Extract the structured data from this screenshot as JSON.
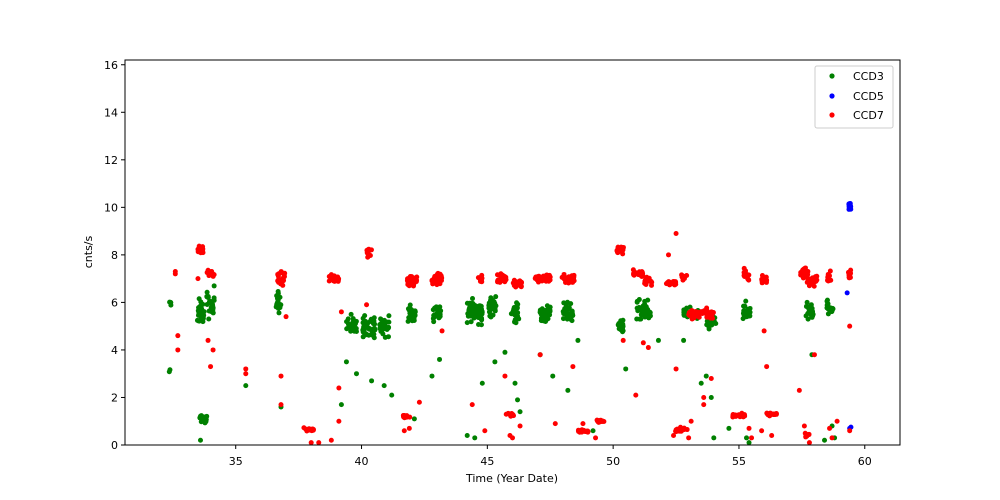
{
  "chart_data": {
    "type": "scatter",
    "xlabel": "Time (Year Date)",
    "ylabel": "cnts/s",
    "xlim": [
      30.6,
      61.4
    ],
    "ylim": [
      0,
      16.2
    ],
    "xticks": [
      35,
      40,
      45,
      50,
      55,
      60
    ],
    "yticks": [
      0,
      2,
      4,
      6,
      8,
      10,
      12,
      14,
      16
    ],
    "grid": false,
    "legend": "top-right",
    "series": [
      {
        "name": "CCD3",
        "color": "#008000",
        "clusters": [
          {
            "x": 32.4,
            "dx": 0.05,
            "y": 5.9,
            "dy": 0.3,
            "n": 4
          },
          {
            "x": 32.4,
            "dx": 0.05,
            "y": 3.1,
            "dy": 0.2,
            "n": 2
          },
          {
            "x": 33.6,
            "dx": 0.15,
            "y": 5.6,
            "dy": 0.8,
            "n": 30
          },
          {
            "x": 33.7,
            "dx": 0.15,
            "y": 1.1,
            "dy": 0.25,
            "n": 22
          },
          {
            "x": 34.0,
            "dx": 0.15,
            "y": 6.0,
            "dy": 1.0,
            "n": 28
          },
          {
            "x": 36.7,
            "dx": 0.1,
            "y": 6.0,
            "dy": 0.7,
            "n": 18
          },
          {
            "x": 39.6,
            "dx": 0.2,
            "y": 5.0,
            "dy": 0.7,
            "n": 28
          },
          {
            "x": 40.3,
            "dx": 0.25,
            "y": 5.0,
            "dy": 0.7,
            "n": 40
          },
          {
            "x": 40.9,
            "dx": 0.2,
            "y": 5.0,
            "dy": 0.7,
            "n": 30
          },
          {
            "x": 42.0,
            "dx": 0.15,
            "y": 5.5,
            "dy": 0.6,
            "n": 28
          },
          {
            "x": 43.0,
            "dx": 0.15,
            "y": 5.6,
            "dy": 0.6,
            "n": 28
          },
          {
            "x": 44.5,
            "dx": 0.3,
            "y": 5.6,
            "dy": 0.7,
            "n": 80
          },
          {
            "x": 45.2,
            "dx": 0.15,
            "y": 5.8,
            "dy": 0.8,
            "n": 26
          },
          {
            "x": 46.1,
            "dx": 0.15,
            "y": 5.6,
            "dy": 0.7,
            "n": 30
          },
          {
            "x": 47.3,
            "dx": 0.2,
            "y": 5.5,
            "dy": 0.6,
            "n": 36
          },
          {
            "x": 48.2,
            "dx": 0.2,
            "y": 5.6,
            "dy": 0.6,
            "n": 30
          },
          {
            "x": 50.3,
            "dx": 0.1,
            "y": 5.0,
            "dy": 0.6,
            "n": 22
          },
          {
            "x": 51.2,
            "dx": 0.3,
            "y": 5.6,
            "dy": 0.7,
            "n": 40
          },
          {
            "x": 53.1,
            "dx": 0.3,
            "y": 5.5,
            "dy": 0.4,
            "n": 30
          },
          {
            "x": 53.9,
            "dx": 0.2,
            "y": 5.2,
            "dy": 0.5,
            "n": 20
          },
          {
            "x": 55.3,
            "dx": 0.15,
            "y": 5.6,
            "dy": 0.6,
            "n": 24
          },
          {
            "x": 57.8,
            "dx": 0.15,
            "y": 5.7,
            "dy": 0.7,
            "n": 24
          },
          {
            "x": 58.6,
            "dx": 0.15,
            "y": 5.8,
            "dy": 0.5,
            "n": 16
          }
        ],
        "points": [
          [
            33.6,
            0.2
          ],
          [
            35.4,
            2.5
          ],
          [
            36.8,
            1.6
          ],
          [
            39.2,
            1.7
          ],
          [
            39.4,
            3.5
          ],
          [
            39.8,
            3.0
          ],
          [
            40.4,
            2.7
          ],
          [
            40.9,
            2.5
          ],
          [
            41.2,
            2.1
          ],
          [
            42.1,
            1.1
          ],
          [
            42.8,
            2.9
          ],
          [
            43.1,
            3.6
          ],
          [
            44.2,
            0.4
          ],
          [
            44.5,
            0.3
          ],
          [
            44.8,
            2.6
          ],
          [
            45.3,
            3.5
          ],
          [
            45.7,
            3.9
          ],
          [
            46.1,
            2.6
          ],
          [
            46.2,
            1.9
          ],
          [
            46.3,
            1.4
          ],
          [
            47.1,
            3.8
          ],
          [
            47.6,
            2.9
          ],
          [
            48.2,
            2.3
          ],
          [
            48.6,
            4.4
          ],
          [
            49.2,
            0.6
          ],
          [
            50.5,
            3.2
          ],
          [
            51.8,
            4.4
          ],
          [
            52.8,
            4.4
          ],
          [
            53.7,
            2.9
          ],
          [
            53.5,
            2.6
          ],
          [
            54.0,
            0.3
          ],
          [
            54.6,
            0.7
          ],
          [
            55.3,
            0.3
          ],
          [
            55.4,
            0.1
          ],
          [
            57.9,
            3.8
          ],
          [
            58.4,
            0.2
          ],
          [
            58.7,
            0.8
          ],
          [
            58.8,
            0.3
          ],
          [
            53.9,
            2.0
          ]
        ]
      },
      {
        "name": "CCD5",
        "color": "#0000ff",
        "clusters": [
          {
            "x": 59.4,
            "dx": 0.05,
            "y": 10.05,
            "dy": 0.25,
            "n": 14
          }
        ],
        "points": [
          [
            59.3,
            6.4
          ],
          [
            59.4,
            0.7
          ],
          [
            59.45,
            0.75
          ]
        ]
      },
      {
        "name": "CCD7",
        "color": "#ff0000",
        "clusters": [
          {
            "x": 33.6,
            "dx": 0.1,
            "y": 8.2,
            "dy": 0.25,
            "n": 18
          },
          {
            "x": 34.0,
            "dx": 0.15,
            "y": 7.2,
            "dy": 0.25,
            "n": 16
          },
          {
            "x": 36.8,
            "dx": 0.15,
            "y": 7.0,
            "dy": 0.4,
            "n": 22
          },
          {
            "x": 37.9,
            "dx": 0.2,
            "y": 0.65,
            "dy": 0.1,
            "n": 16
          },
          {
            "x": 38.9,
            "dx": 0.2,
            "y": 7.0,
            "dy": 0.25,
            "n": 22
          },
          {
            "x": 40.3,
            "dx": 0.1,
            "y": 8.1,
            "dy": 0.35,
            "n": 10
          },
          {
            "x": 41.8,
            "dx": 0.15,
            "y": 1.2,
            "dy": 0.1,
            "n": 14
          },
          {
            "x": 42.0,
            "dx": 0.2,
            "y": 6.9,
            "dy": 0.35,
            "n": 30
          },
          {
            "x": 43.0,
            "dx": 0.2,
            "y": 7.0,
            "dy": 0.35,
            "n": 30
          },
          {
            "x": 44.7,
            "dx": 0.1,
            "y": 7.0,
            "dy": 0.3,
            "n": 10
          },
          {
            "x": 45.6,
            "dx": 0.2,
            "y": 7.0,
            "dy": 0.3,
            "n": 28
          },
          {
            "x": 45.9,
            "dx": 0.15,
            "y": 1.3,
            "dy": 0.15,
            "n": 12
          },
          {
            "x": 46.2,
            "dx": 0.2,
            "y": 6.8,
            "dy": 0.3,
            "n": 24
          },
          {
            "x": 47.2,
            "dx": 0.3,
            "y": 7.0,
            "dy": 0.3,
            "n": 44
          },
          {
            "x": 48.2,
            "dx": 0.25,
            "y": 7.0,
            "dy": 0.3,
            "n": 36
          },
          {
            "x": 48.8,
            "dx": 0.2,
            "y": 0.6,
            "dy": 0.15,
            "n": 16
          },
          {
            "x": 49.5,
            "dx": 0.15,
            "y": 1.0,
            "dy": 0.1,
            "n": 14
          },
          {
            "x": 50.3,
            "dx": 0.15,
            "y": 8.2,
            "dy": 0.25,
            "n": 22
          },
          {
            "x": 51.0,
            "dx": 0.2,
            "y": 7.2,
            "dy": 0.25,
            "n": 22
          },
          {
            "x": 51.4,
            "dx": 0.15,
            "y": 6.9,
            "dy": 0.3,
            "n": 14
          },
          {
            "x": 52.3,
            "dx": 0.2,
            "y": 6.8,
            "dy": 0.2,
            "n": 22
          },
          {
            "x": 52.8,
            "dx": 0.12,
            "y": 7.1,
            "dy": 0.3,
            "n": 10
          },
          {
            "x": 52.7,
            "dx": 0.25,
            "y": 0.65,
            "dy": 0.15,
            "n": 18
          },
          {
            "x": 53.3,
            "dx": 0.3,
            "y": 5.5,
            "dy": 0.25,
            "n": 44
          },
          {
            "x": 53.8,
            "dx": 0.2,
            "y": 5.5,
            "dy": 0.3,
            "n": 20
          },
          {
            "x": 55.0,
            "dx": 0.25,
            "y": 1.25,
            "dy": 0.1,
            "n": 24
          },
          {
            "x": 55.3,
            "dx": 0.1,
            "y": 7.2,
            "dy": 0.5,
            "n": 14
          },
          {
            "x": 56.0,
            "dx": 0.1,
            "y": 6.9,
            "dy": 0.3,
            "n": 12
          },
          {
            "x": 56.3,
            "dx": 0.2,
            "y": 1.3,
            "dy": 0.1,
            "n": 24
          },
          {
            "x": 57.6,
            "dx": 0.15,
            "y": 7.2,
            "dy": 0.4,
            "n": 20
          },
          {
            "x": 57.9,
            "dx": 0.2,
            "y": 6.9,
            "dy": 0.4,
            "n": 24
          },
          {
            "x": 57.7,
            "dx": 0.1,
            "y": 0.45,
            "dy": 0.15,
            "n": 8
          },
          {
            "x": 58.6,
            "dx": 0.1,
            "y": 7.1,
            "dy": 0.3,
            "n": 12
          },
          {
            "x": 59.4,
            "dx": 0.05,
            "y": 7.2,
            "dy": 0.3,
            "n": 10
          }
        ],
        "points": [
          [
            32.6,
            7.2
          ],
          [
            32.6,
            7.3
          ],
          [
            32.7,
            4.6
          ],
          [
            32.7,
            4.0
          ],
          [
            33.5,
            7.0
          ],
          [
            33.9,
            4.4
          ],
          [
            34.1,
            4.0
          ],
          [
            34.0,
            3.3
          ],
          [
            35.4,
            3.0
          ],
          [
            35.4,
            3.2
          ],
          [
            36.8,
            2.9
          ],
          [
            36.8,
            1.7
          ],
          [
            37.0,
            5.4
          ],
          [
            38.0,
            0.1
          ],
          [
            38.3,
            0.1
          ],
          [
            38.8,
            0.2
          ],
          [
            39.1,
            1.0
          ],
          [
            39.1,
            2.4
          ],
          [
            39.2,
            5.6
          ],
          [
            40.2,
            5.9
          ],
          [
            41.7,
            0.6
          ],
          [
            41.9,
            0.7
          ],
          [
            42.3,
            1.8
          ],
          [
            43.2,
            4.8
          ],
          [
            44.4,
            1.7
          ],
          [
            44.9,
            0.6
          ],
          [
            45.7,
            2.9
          ],
          [
            45.9,
            0.4
          ],
          [
            46.0,
            0.3
          ],
          [
            46.3,
            0.8
          ],
          [
            47.1,
            3.8
          ],
          [
            47.7,
            0.9
          ],
          [
            48.4,
            3.3
          ],
          [
            48.8,
            0.9
          ],
          [
            49.3,
            0.3
          ],
          [
            50.4,
            4.4
          ],
          [
            50.9,
            2.1
          ],
          [
            51.2,
            4.3
          ],
          [
            51.4,
            4.1
          ],
          [
            52.4,
            0.4
          ],
          [
            52.5,
            3.2
          ],
          [
            52.5,
            8.9
          ],
          [
            52.2,
            8.0
          ],
          [
            53.0,
            0.3
          ],
          [
            53.1,
            1.0
          ],
          [
            53.6,
            1.7
          ],
          [
            53.6,
            2.0
          ],
          [
            53.9,
            2.8
          ],
          [
            55.4,
            0.7
          ],
          [
            55.5,
            0.3
          ],
          [
            55.9,
            0.6
          ],
          [
            56.0,
            4.8
          ],
          [
            56.1,
            3.3
          ],
          [
            56.3,
            0.4
          ],
          [
            57.4,
            2.3
          ],
          [
            57.6,
            0.8
          ],
          [
            57.8,
            0.1
          ],
          [
            58.0,
            3.8
          ],
          [
            58.6,
            0.7
          ],
          [
            58.7,
            0.3
          ],
          [
            59.4,
            5.0
          ],
          [
            59.4,
            0.6
          ],
          [
            58.9,
            1.0
          ]
        ]
      }
    ]
  }
}
